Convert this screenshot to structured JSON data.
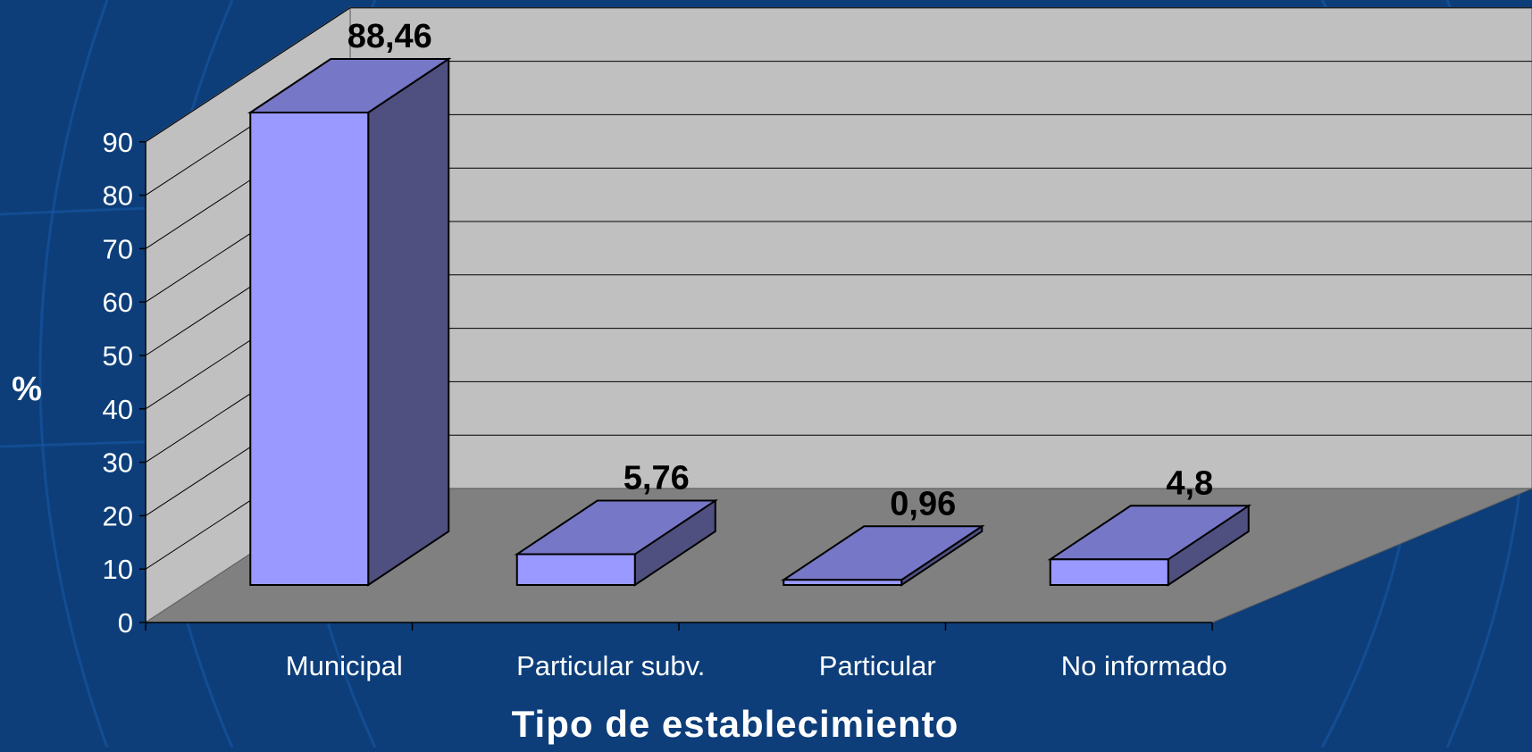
{
  "chart_data": {
    "type": "bar",
    "categories": [
      "Municipal",
      "Particular subv.",
      "Particular",
      "No informado"
    ],
    "values": [
      88.46,
      5.76,
      0.96,
      4.8
    ],
    "value_labels": [
      "88,46",
      "5,76",
      "0,96",
      "4,8"
    ],
    "xlabel": "Tipo de establecimiento",
    "ylabel": "%",
    "ylim": [
      0,
      90
    ],
    "yticks": [
      0,
      10,
      20,
      30,
      40,
      50,
      60,
      70,
      80,
      90
    ],
    "grid": true,
    "three_d": true,
    "colors": {
      "background": "#0d3e7a",
      "back_wall": "#c0c0c0",
      "side_wall": "#c0c0c0",
      "floor": "#808080",
      "bar_front": "#9999ff",
      "bar_top": "#7777c8",
      "bar_side": "#4f4f80",
      "text": "#ffffff",
      "value_label": "#000000"
    }
  }
}
